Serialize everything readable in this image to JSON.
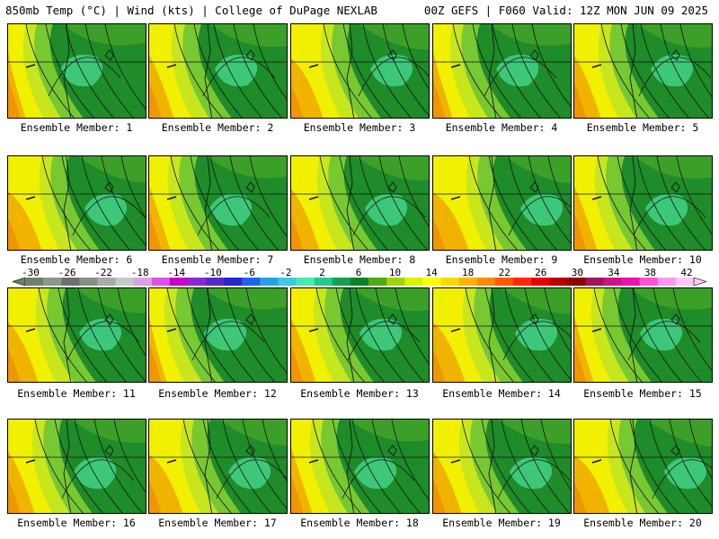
{
  "header": {
    "left_title": "850mb Temp (°C) | Wind (kts) | College of DuPage NEXLAB",
    "right_title": "00Z GEFS | F060 Valid: 12Z MON JUN 09 2025"
  },
  "panel_label_prefix": "Ensemble Member: ",
  "panels": [
    {
      "label": "Ensemble Member: 1"
    },
    {
      "label": "Ensemble Member: 2"
    },
    {
      "label": "Ensemble Member: 3"
    },
    {
      "label": "Ensemble Member: 4"
    },
    {
      "label": "Ensemble Member: 5"
    },
    {
      "label": "Ensemble Member: 6"
    },
    {
      "label": "Ensemble Member: 7"
    },
    {
      "label": "Ensemble Member: 8"
    },
    {
      "label": "Ensemble Member: 9"
    },
    {
      "label": "Ensemble Member: 10"
    },
    {
      "label": "Ensemble Member: 11"
    },
    {
      "label": "Ensemble Member: 12"
    },
    {
      "label": "Ensemble Member: 13"
    },
    {
      "label": "Ensemble Member: 14"
    },
    {
      "label": "Ensemble Member: 15"
    },
    {
      "label": "Ensemble Member: 16"
    },
    {
      "label": "Ensemble Member: 17"
    },
    {
      "label": "Ensemble Member: 18"
    },
    {
      "label": "Ensemble Member: 19"
    },
    {
      "label": "Ensemble Member: 20"
    }
  ],
  "colorbar": {
    "labels": [
      "-30",
      "-26",
      "-22",
      "-18",
      "-14",
      "-10",
      "-6",
      "-2",
      "2",
      "6",
      "10",
      "14",
      "18",
      "22",
      "26",
      "30",
      "34",
      "38",
      "42"
    ],
    "colors": [
      "#6e7f70",
      "#8a9a8a",
      "#6f6f6f",
      "#8c8c8c",
      "#a9a9a9",
      "#c9c9c9",
      "#dca0e6",
      "#e050e6",
      "#c800c8",
      "#8c28d2",
      "#5a28c8",
      "#2828c8",
      "#1e64e6",
      "#28a0e6",
      "#3cc8e6",
      "#50e6b4",
      "#28c88c",
      "#14a050",
      "#0a8228",
      "#50aa14",
      "#a0d214",
      "#dcf00a",
      "#ffff00",
      "#ffd700",
      "#ffb400",
      "#ff8c00",
      "#ff5a00",
      "#ff2800",
      "#e60000",
      "#b40000",
      "#8c0000",
      "#a0145a",
      "#c8148c",
      "#e614b4",
      "#ff50dc",
      "#ff96f0",
      "#ffc8f8"
    ]
  },
  "map_colors": {
    "dark_green": "#1e8c28",
    "mid_green": "#3ca028",
    "light_green": "#78c832",
    "yellow_green": "#c8e61e",
    "yellow": "#f0f000",
    "orange": "#f0b400",
    "deep_orange": "#f09600",
    "teal": "#3cc878",
    "contour": "#141414"
  }
}
